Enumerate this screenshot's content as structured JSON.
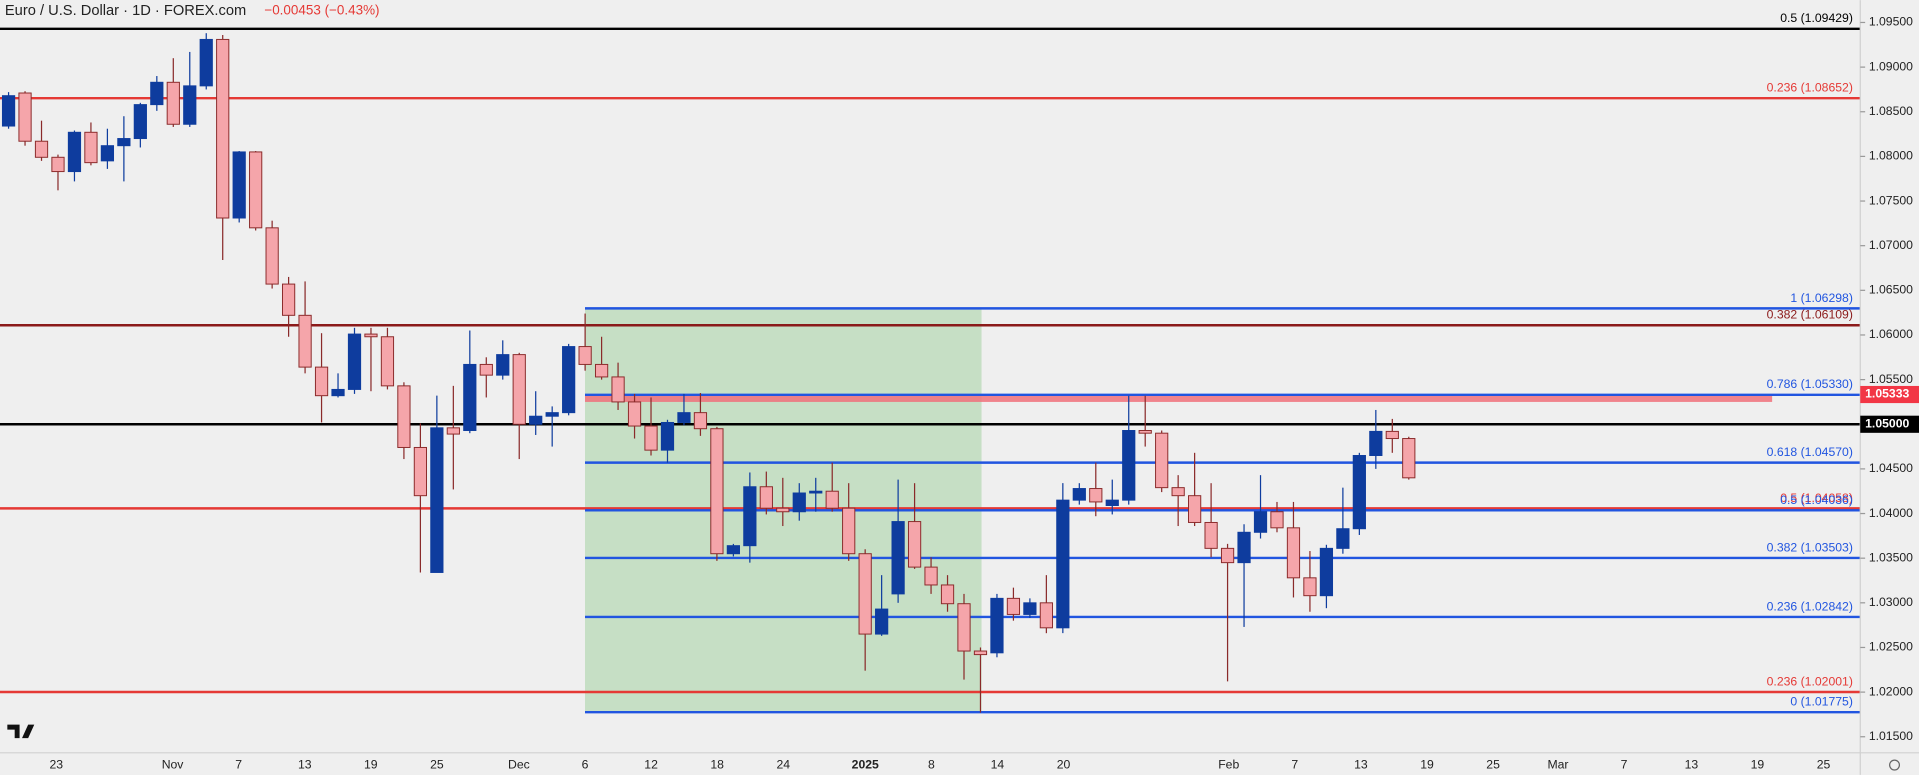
{
  "header": {
    "title": "Euro / U.S. Dollar · 1D · FOREX.com",
    "change": "−0.00453 (−0.43%)"
  },
  "chart_data": {
    "type": "candlestick",
    "up_color": "#0e3c9e",
    "down_color": "#f5a5aa",
    "ylim": [
      1.0132,
      1.0975
    ],
    "yticks": [
      {
        "value": 1.015,
        "label": "1.01500"
      },
      {
        "value": 1.02,
        "label": "1.02000"
      },
      {
        "value": 1.025,
        "label": "1.02500"
      },
      {
        "value": 1.03,
        "label": "1.03000"
      },
      {
        "value": 1.035,
        "label": "1.03500"
      },
      {
        "value": 1.04,
        "label": "1.04000"
      },
      {
        "value": 1.045,
        "label": "1.04500"
      },
      {
        "value": 1.05,
        "label": "1.05000"
      },
      {
        "value": 1.055,
        "label": "1.05500"
      },
      {
        "value": 1.06,
        "label": "1.06000"
      },
      {
        "value": 1.065,
        "label": "1.06500"
      },
      {
        "value": 1.07,
        "label": "1.07000"
      },
      {
        "value": 1.075,
        "label": "1.07500"
      },
      {
        "value": 1.08,
        "label": "1.08000"
      },
      {
        "value": 1.085,
        "label": "1.08500"
      },
      {
        "value": 1.09,
        "label": "1.09000"
      },
      {
        "value": 1.095,
        "label": "1.09500"
      }
    ],
    "x_labels": [
      "23",
      "Nov",
      "7",
      "13",
      "19",
      "25",
      "Dec",
      "6",
      "12",
      "18",
      "24",
      "2025",
      "8",
      "14",
      "20",
      "Feb",
      "7",
      "13",
      "19",
      "25",
      "Mar",
      "7",
      "13",
      "19",
      "25"
    ],
    "open": [
      1.0834,
      1.0871,
      1.0817,
      1.0799,
      1.0783,
      1.0827,
      1.0795,
      1.0812,
      1.082,
      1.0858,
      1.0883,
      1.0836,
      1.0879,
      1.0931,
      1.0731,
      1.0805,
      1.072,
      1.0657,
      1.0622,
      1.0564,
      1.0532,
      1.0539,
      1.0601,
      1.0598,
      1.0543,
      1.0474,
      1.0334,
      1.0496,
      1.0493,
      1.0567,
      1.0555,
      1.0578,
      1.05,
      1.0509,
      1.0513,
      1.0587,
      1.0567,
      1.0553,
      1.0525,
      1.0498,
      1.0471,
      1.0502,
      1.0513,
      1.0495,
      1.0355,
      1.0364,
      1.043,
      1.0406,
      1.0402,
      1.0423,
      1.0425,
      1.0406,
      1.0355,
      1.0265,
      1.031,
      1.0391,
      1.034,
      1.032,
      1.0299,
      1.0246,
      1.0244,
      1.0305,
      1.0287,
      1.03,
      1.0272,
      1.0415,
      1.0428,
      1.0409,
      1.0415,
      1.0493,
      1.049,
      1.0429,
      1.042,
      1.039,
      1.0361,
      1.0345,
      1.0379,
      1.0402,
      1.0384,
      1.0328,
      1.0308,
      1.0361,
      1.0383,
      1.0465,
      1.0492,
      1.0484
    ],
    "high": [
      1.0872,
      1.0873,
      1.084,
      1.0802,
      1.0829,
      1.0838,
      1.0831,
      1.0845,
      1.086,
      1.089,
      1.091,
      1.0917,
      1.0938,
      1.0936,
      1.0806,
      1.0806,
      1.0728,
      1.0665,
      1.066,
      1.0602,
      1.0557,
      1.0608,
      1.0608,
      1.0608,
      1.0547,
      1.0501,
      1.0532,
      1.0543,
      1.0605,
      1.0575,
      1.0594,
      1.058,
      1.0537,
      1.052,
      1.059,
      1.0624,
      1.0598,
      1.0569,
      1.0534,
      1.053,
      1.0505,
      1.0534,
      1.0535,
      1.0497,
      1.0366,
      1.0446,
      1.0447,
      1.044,
      1.0434,
      1.044,
      1.0457,
      1.0434,
      1.036,
      1.0331,
      1.0438,
      1.0434,
      1.0351,
      1.0331,
      1.031,
      1.025,
      1.031,
      1.0317,
      1.0305,
      1.0331,
      1.0434,
      1.0434,
      1.0457,
      1.0438,
      1.0532,
      1.0532,
      1.0493,
      1.0443,
      1.0468,
      1.0434,
      1.0366,
      1.0388,
      1.0443,
      1.0413,
      1.0413,
      1.0358,
      1.0365,
      1.0429,
      1.0468,
      1.0516,
      1.0506,
      1.0486
    ],
    "low": [
      1.0831,
      1.0812,
      1.0795,
      1.0762,
      1.0772,
      1.079,
      1.0786,
      1.0772,
      1.081,
      1.0851,
      1.0833,
      1.0833,
      1.0875,
      1.0684,
      1.0726,
      1.0717,
      1.0652,
      1.0598,
      1.0557,
      1.0502,
      1.053,
      1.0534,
      1.0537,
      1.0539,
      1.0461,
      1.0334,
      1.0334,
      1.0427,
      1.049,
      1.053,
      1.055,
      1.0461,
      1.0488,
      1.0475,
      1.051,
      1.056,
      1.055,
      1.0516,
      1.0484,
      1.0465,
      1.0457,
      1.0499,
      1.0487,
      1.0347,
      1.0352,
      1.0345,
      1.0399,
      1.0386,
      1.0392,
      1.0402,
      1.0402,
      1.0347,
      1.0224,
      1.0263,
      1.03,
      1.0338,
      1.031,
      1.029,
      1.0214,
      1.0177,
      1.0239,
      1.028,
      1.0283,
      1.0266,
      1.0266,
      1.041,
      1.0397,
      1.0399,
      1.041,
      1.0475,
      1.0424,
      1.0386,
      1.0386,
      1.0351,
      1.0212,
      1.0273,
      1.0372,
      1.0379,
      1.0306,
      1.029,
      1.0294,
      1.0355,
      1.0376,
      1.045,
      1.0468,
      1.0438
    ],
    "close": [
      1.0868,
      1.0817,
      1.0799,
      1.0783,
      1.0827,
      1.0793,
      1.0812,
      1.082,
      1.0858,
      1.0883,
      1.0836,
      1.0879,
      1.0931,
      1.0731,
      1.0805,
      1.072,
      1.0657,
      1.0622,
      1.0564,
      1.0532,
      1.0539,
      1.0601,
      1.0598,
      1.0543,
      1.0474,
      1.042,
      1.0496,
      1.0489,
      1.0567,
      1.0555,
      1.0578,
      1.05,
      1.0509,
      1.0513,
      1.0587,
      1.0567,
      1.0553,
      1.0525,
      1.0498,
      1.0471,
      1.0502,
      1.0513,
      1.0495,
      1.0355,
      1.0364,
      1.043,
      1.0406,
      1.0402,
      1.0423,
      1.0425,
      1.0406,
      1.0355,
      1.0265,
      1.0293,
      1.0391,
      1.034,
      1.032,
      1.0299,
      1.0246,
      1.0242,
      1.0305,
      1.0287,
      1.03,
      1.0272,
      1.0415,
      1.0428,
      1.0413,
      1.0415,
      1.0493,
      1.049,
      1.0429,
      1.042,
      1.039,
      1.0361,
      1.0345,
      1.0379,
      1.0402,
      1.0384,
      1.0328,
      1.0308,
      1.0361,
      1.0383,
      1.0465,
      1.0492,
      1.0484,
      1.044
    ],
    "levels": [
      {
        "value": 1.09429,
        "label": "0.5 (1.09429)",
        "color": "#000000"
      },
      {
        "value": 1.08652,
        "label": "0.236 (1.08652)",
        "color": "#e53935"
      },
      {
        "value": 1.06109,
        "label": "0.382 (1.06109)",
        "color": "#8b1a1a"
      },
      {
        "value": 1.05,
        "color": "#000000"
      },
      {
        "value": 1.04058,
        "label": "0.5 (1.04058)",
        "color": "#e53935"
      },
      {
        "value": 1.02001,
        "label": "0.236 (1.02001)",
        "color": "#e53935"
      }
    ],
    "fib_levels": [
      {
        "value": 1.06298,
        "label": "1 (1.06298)",
        "color": "#2155e0"
      },
      {
        "value": 1.0533,
        "label": "0.786 (1.05330)",
        "color": "#2155e0"
      },
      {
        "value": 1.0457,
        "label": "0.618 (1.04570)",
        "color": "#2155e0"
      },
      {
        "value": 1.04036,
        "label": "0.5 (1.04036)",
        "color": "#2155e0"
      },
      {
        "value": 1.03503,
        "label": "0.382 (1.03503)",
        "color": "#2155e0"
      },
      {
        "value": 1.02842,
        "label": "0.236 (1.02842)",
        "color": "#2155e0"
      },
      {
        "value": 1.01775,
        "label": "0 (1.01775)",
        "color": "#2155e0"
      }
    ],
    "zone": {
      "low": 1.0525,
      "high": 1.05333,
      "color": "#f0707a"
    },
    "price_tags": [
      {
        "value": 1.05333,
        "label": "1.05333",
        "color": "#f23645"
      },
      {
        "value": 1.05,
        "label": "1.05000",
        "color": "#000000"
      }
    ]
  }
}
